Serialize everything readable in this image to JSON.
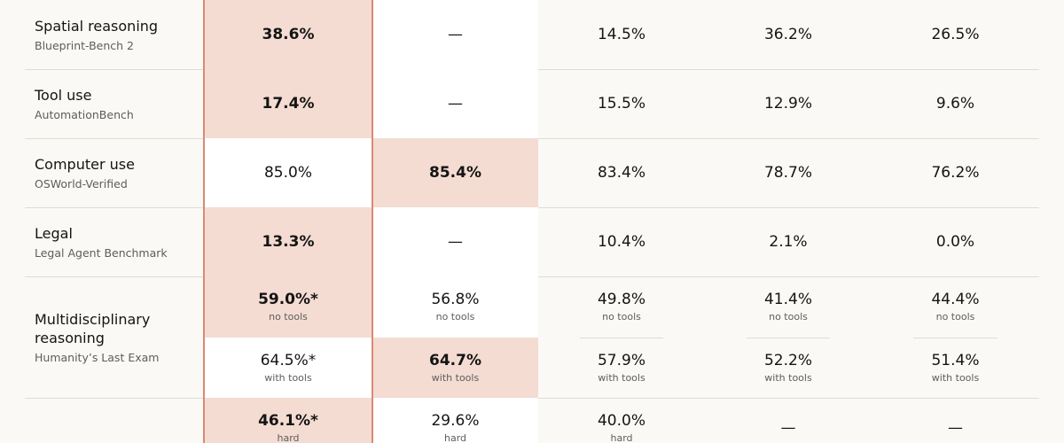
{
  "table": {
    "rows": [
      {
        "label": "Spatial reasoning",
        "benchmark": "Blueprint-Bench 2",
        "subrows": [
          [
            {
              "value": "38.6%",
              "highlight": true
            },
            {
              "value": "—"
            },
            {
              "value": "14.5%"
            },
            {
              "value": "36.2%"
            },
            {
              "value": "26.5%"
            }
          ]
        ]
      },
      {
        "label": "Tool use",
        "benchmark": "AutomationBench",
        "subrows": [
          [
            {
              "value": "17.4%",
              "highlight": true
            },
            {
              "value": "—"
            },
            {
              "value": "15.5%"
            },
            {
              "value": "12.9%"
            },
            {
              "value": "9.6%"
            }
          ]
        ]
      },
      {
        "label": "Computer use",
        "benchmark": "OSWorld-Verified",
        "subrows": [
          [
            {
              "value": "85.0%"
            },
            {
              "value": "85.4%",
              "highlight": true
            },
            {
              "value": "83.4%"
            },
            {
              "value": "78.7%"
            },
            {
              "value": "76.2%"
            }
          ]
        ]
      },
      {
        "label": "Legal",
        "benchmark": "Legal Agent Benchmark",
        "subrows": [
          [
            {
              "value": "13.3%",
              "highlight": true
            },
            {
              "value": "—"
            },
            {
              "value": "10.4%"
            },
            {
              "value": "2.1%"
            },
            {
              "value": "0.0%"
            }
          ]
        ]
      },
      {
        "label": "Multidisciplinary reasoning",
        "benchmark": "Humanity’s Last Exam",
        "subrows": [
          [
            {
              "value": "59.0%*",
              "note": "no tools",
              "highlight": true
            },
            {
              "value": "56.8%",
              "note": "no tools"
            },
            {
              "value": "49.8%",
              "note": "no tools"
            },
            {
              "value": "41.4%",
              "note": "no tools"
            },
            {
              "value": "44.4%",
              "note": "no tools"
            }
          ],
          [
            {
              "value": "64.5%*",
              "note": "with tools"
            },
            {
              "value": "64.7%",
              "note": "with tools",
              "highlight": true
            },
            {
              "value": "57.9%",
              "note": "with tools"
            },
            {
              "value": "52.2%",
              "note": "with tools"
            },
            {
              "value": "51.4%",
              "note": "with tools"
            }
          ]
        ]
      },
      {
        "subrows": [
          [
            {
              "value": "46.1%*",
              "note": "hard",
              "highlight": true
            },
            {
              "value": "29.6%",
              "note": "hard"
            },
            {
              "value": "40.0%",
              "note": "hard"
            },
            {
              "value": "—"
            },
            {
              "value": "—"
            }
          ]
        ]
      }
    ]
  }
}
